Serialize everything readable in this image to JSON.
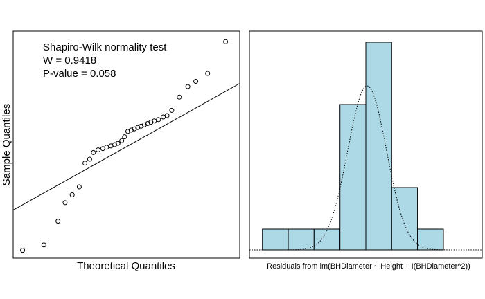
{
  "chart_data": [
    {
      "type": "scatter",
      "subtype": "qq-plot",
      "xlabel": "Theoretical Quantiles",
      "ylabel": "Sample Quantiles",
      "annotations": [
        "Shapiro-Wilk normality test",
        "W = 0.9418",
        "P-value = 0.058"
      ],
      "xlim": [
        -2.4,
        2.4
      ],
      "ylim": [
        -0.41,
        0.45
      ],
      "axis_ticks_shown": false,
      "reference_line": {
        "intercept": 0.012,
        "slope": 0.1
      },
      "points": [
        {
          "x": -2.2,
          "y": -0.38
        },
        {
          "x": -1.75,
          "y": -0.36
        },
        {
          "x": -1.45,
          "y": -0.27
        },
        {
          "x": -1.3,
          "y": -0.2
        },
        {
          "x": -1.15,
          "y": -0.17
        },
        {
          "x": -1.0,
          "y": -0.14
        },
        {
          "x": -0.88,
          "y": -0.05
        },
        {
          "x": -0.78,
          "y": -0.035
        },
        {
          "x": -0.7,
          "y": -0.01
        },
        {
          "x": -0.6,
          "y": 0.0
        },
        {
          "x": -0.5,
          "y": 0.005
        },
        {
          "x": -0.42,
          "y": 0.01
        },
        {
          "x": -0.33,
          "y": 0.015
        },
        {
          "x": -0.25,
          "y": 0.02
        },
        {
          "x": -0.18,
          "y": 0.025
        },
        {
          "x": -0.1,
          "y": 0.035
        },
        {
          "x": -0.04,
          "y": 0.05
        },
        {
          "x": 0.03,
          "y": 0.07
        },
        {
          "x": 0.1,
          "y": 0.075
        },
        {
          "x": 0.17,
          "y": 0.08
        },
        {
          "x": 0.24,
          "y": 0.085
        },
        {
          "x": 0.31,
          "y": 0.09
        },
        {
          "x": 0.38,
          "y": 0.095
        },
        {
          "x": 0.45,
          "y": 0.1
        },
        {
          "x": 0.52,
          "y": 0.105
        },
        {
          "x": 0.59,
          "y": 0.11
        },
        {
          "x": 0.68,
          "y": 0.115
        },
        {
          "x": 0.78,
          "y": 0.125
        },
        {
          "x": 0.86,
          "y": 0.13
        },
        {
          "x": 0.96,
          "y": 0.15
        },
        {
          "x": 1.12,
          "y": 0.2
        },
        {
          "x": 1.3,
          "y": 0.24
        },
        {
          "x": 1.47,
          "y": 0.26
        },
        {
          "x": 1.72,
          "y": 0.29
        },
        {
          "x": 2.1,
          "y": 0.41
        }
      ]
    },
    {
      "type": "bar",
      "subtype": "histogram",
      "xlabel": "Residuals from lm(BHDiameter ~ Height + I(BHDiameter^2))",
      "ylabel": "",
      "fill_color": "#add8e6",
      "bin_edges": [
        -0.4,
        -0.3,
        -0.2,
        -0.1,
        0.0,
        0.1,
        0.2,
        0.3
      ],
      "values": [
        1,
        1,
        1,
        7,
        10,
        3,
        1
      ],
      "ylim": [
        0,
        10
      ],
      "xlim": [
        -0.45,
        0.45
      ],
      "axis_ticks_shown": false,
      "density_curve": {
        "style": "dotted",
        "mean": 0.005,
        "sd": 0.075,
        "peak_count": 7.9
      }
    }
  ]
}
